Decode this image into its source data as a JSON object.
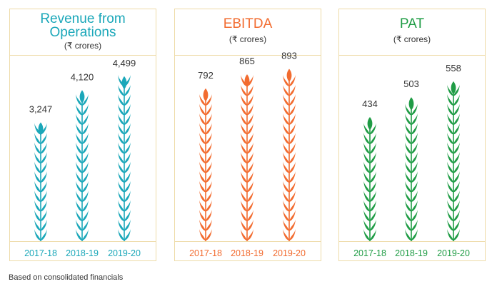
{
  "footnote": "Based on consolidated financials",
  "chart_data": [
    {
      "type": "bar",
      "title": "Revenue from Operations",
      "subtitle": "(₹ crores)",
      "categories": [
        "2017-18",
        "2018-19",
        "2019-20"
      ],
      "values": [
        3247,
        4120,
        4499
      ],
      "labels": [
        "3,247",
        "4,120",
        "4,499"
      ],
      "color": "#1aa7b9",
      "ylim": [
        0,
        5000
      ]
    },
    {
      "type": "bar",
      "title": "EBITDA",
      "subtitle": "(₹ crores)",
      "categories": [
        "2017-18",
        "2018-19",
        "2019-20"
      ],
      "values": [
        792,
        865,
        893
      ],
      "labels": [
        "792",
        "865",
        "893"
      ],
      "color": "#f26b2f",
      "ylim": [
        0,
        950
      ]
    },
    {
      "type": "bar",
      "title": "PAT",
      "subtitle": "(₹ crores)",
      "categories": [
        "2017-18",
        "2018-19",
        "2019-20"
      ],
      "values": [
        434,
        503,
        558
      ],
      "labels": [
        "434",
        "503",
        "558"
      ],
      "color": "#1f9c45",
      "ylim": [
        0,
        640
      ]
    }
  ]
}
